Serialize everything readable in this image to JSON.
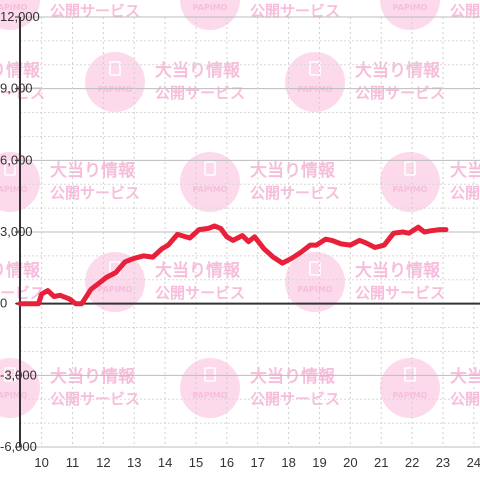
{
  "watermark": {
    "brand": "PAPIMO",
    "line1": "大当り情報",
    "line2": "公開サービス",
    "color": "#f6b3d6"
  },
  "chart_data": {
    "type": "line",
    "title": "",
    "xlabel": "",
    "ylabel": "",
    "xlim": [
      9.3,
      24.2
    ],
    "ylim": [
      -6000,
      12000
    ],
    "x_ticks": [
      10,
      11,
      12,
      13,
      14,
      15,
      16,
      17,
      18,
      19,
      20,
      21,
      22,
      23,
      24
    ],
    "x_tick_labels": [
      "10",
      "11",
      "12",
      "13",
      "14",
      "15",
      "16",
      "17",
      "18",
      "19",
      "20",
      "21",
      "22",
      "23",
      "24"
    ],
    "y_ticks": [
      -6000,
      -3000,
      0,
      3000,
      6000,
      9000,
      12000
    ],
    "y_tick_labels": [
      "-6,000",
      "-3,000",
      "0",
      "3,000",
      "6,000",
      "9,000",
      "12,000"
    ],
    "grid": true,
    "legend": "none",
    "line_color": "#e8203a",
    "series": [
      {
        "x": [
          9.3,
          9.6,
          9.9,
          10.0,
          10.2,
          10.4,
          10.6,
          10.9,
          11.1,
          11.3,
          11.6,
          11.9,
          12.1,
          12.4,
          12.7,
          13.0,
          13.3,
          13.6,
          13.9,
          14.1,
          14.4,
          14.8,
          15.1,
          15.4,
          15.6,
          15.8,
          16.0,
          16.2,
          16.5,
          16.7,
          16.9,
          17.2,
          17.5,
          17.8,
          18.1,
          18.4,
          18.7,
          18.9,
          19.2,
          19.4,
          19.7,
          20.0,
          20.3,
          20.5,
          20.8,
          21.1,
          21.4,
          21.7,
          21.9,
          22.2,
          22.4,
          22.6,
          22.9,
          23.1
        ],
        "y": [
          0,
          0,
          0,
          400,
          550,
          300,
          350,
          200,
          0,
          0,
          600,
          900,
          1100,
          1300,
          1750,
          1900,
          2000,
          1950,
          2300,
          2450,
          2900,
          2750,
          3100,
          3150,
          3250,
          3150,
          2800,
          2650,
          2850,
          2600,
          2800,
          2300,
          1950,
          1700,
          1900,
          2150,
          2450,
          2450,
          2700,
          2650,
          2500,
          2450,
          2650,
          2550,
          2350,
          2450,
          2950,
          3000,
          2950,
          3200,
          3000,
          3050,
          3100,
          3100
        ]
      }
    ]
  }
}
